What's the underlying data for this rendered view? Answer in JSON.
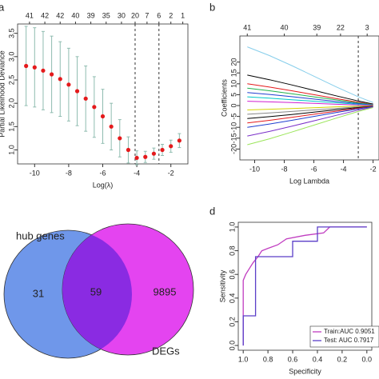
{
  "chart_data": [
    {
      "type": "cvcurve",
      "panel": "a",
      "xlabel": "Log(λ)",
      "ylabel": "Partial Likelihood Deviance",
      "x": [
        -10.5,
        -10,
        -9.5,
        -9,
        -8.5,
        -8,
        -7.5,
        -7,
        -6.5,
        -6,
        -5.5,
        -5,
        -4.5,
        -4,
        -3.5,
        -3,
        -2.5,
        -2,
        -1.5
      ],
      "values": [
        2.8,
        2.77,
        2.7,
        2.62,
        2.52,
        2.4,
        2.26,
        2.1,
        1.92,
        1.72,
        1.5,
        1.25,
        1.0,
        0.83,
        0.85,
        0.92,
        1.0,
        1.08,
        1.2
      ],
      "errors": [
        0.85,
        0.85,
        0.84,
        0.82,
        0.8,
        0.78,
        0.74,
        0.7,
        0.65,
        0.58,
        0.5,
        0.4,
        0.28,
        0.15,
        0.12,
        0.12,
        0.12,
        0.13,
        0.15
      ],
      "color": "#e41a1c",
      "error_color": "#8fbcb0",
      "xlim": [
        -11,
        -1
      ],
      "xticks": [
        -10,
        -8,
        -6,
        -4,
        -2
      ],
      "ylim": [
        0.7,
        3.7
      ],
      "yticks": [
        {
          "value": 1,
          "label": "1.0"
        },
        1.5,
        {
          "value": 2,
          "label": "2.0"
        },
        2.5,
        {
          "value": 3,
          "label": "3.0"
        },
        3.5
      ],
      "top_ticks": [
        {
          "value": -10.3,
          "label": "41"
        },
        {
          "value": -9.4,
          "label": "42"
        },
        {
          "value": -8.5,
          "label": "42"
        },
        {
          "value": -7.6,
          "label": "40"
        },
        {
          "value": -6.7,
          "label": "39"
        },
        {
          "value": -5.8,
          "label": "35"
        },
        {
          "value": -4.9,
          "label": "30"
        },
        {
          "value": -4.1,
          "label": "20"
        },
        {
          "value": -3.4,
          "label": "7"
        },
        {
          "value": -2.7,
          "label": "6"
        },
        {
          "value": -2.0,
          "label": "2"
        },
        {
          "value": -1.3,
          "label": "1"
        }
      ],
      "vlines": [
        -4.1,
        -2.7
      ]
    },
    {
      "type": "coef",
      "panel": "b",
      "xlabel": "Log Lambda",
      "ylabel": "Coefficients",
      "x": [
        -10.5,
        -9,
        -7.5,
        -6,
        -4.5,
        -3,
        -2
      ],
      "series": [
        {
          "color": "#87ceeb",
          "values": [
            27,
            23,
            18.4,
            13.5,
            8.6,
            4,
            1.4
          ]
        },
        {
          "color": "#000000",
          "values": [
            14,
            11.9,
            9.5,
            7,
            4.5,
            2.1,
            0.7
          ]
        },
        {
          "color": "#e41a1c",
          "values": [
            10,
            8.5,
            6.8,
            5,
            3.2,
            1.5,
            0.5
          ]
        },
        {
          "color": "#22b14c",
          "values": [
            8,
            6.8,
            5.4,
            4,
            2.6,
            1.2,
            0.4
          ]
        },
        {
          "color": "#1f3fd0",
          "values": [
            6,
            5.1,
            4.1,
            3,
            1.9,
            0.9,
            0.3
          ]
        },
        {
          "color": "#00c8c8",
          "values": [
            4,
            3.4,
            2.7,
            2,
            1.3,
            0.6,
            0.2
          ]
        },
        {
          "color": "#d020d0",
          "values": [
            2,
            1.7,
            1.4,
            1,
            0.6,
            0.3,
            0.1
          ]
        },
        {
          "color": "#d4d400",
          "values": [
            -2,
            -1.7,
            -1.4,
            -1,
            -0.6,
            -0.3,
            -0.1
          ]
        },
        {
          "color": "#888888",
          "values": [
            -4,
            -3.4,
            -2.7,
            -2,
            -1.3,
            -0.6,
            -0.2
          ]
        },
        {
          "color": "#000000",
          "values": [
            -6,
            -5.1,
            -4.1,
            -3,
            -1.9,
            -0.9,
            -0.3
          ]
        },
        {
          "color": "#e41a1c",
          "values": [
            -8,
            -6.8,
            -5.4,
            -4,
            -2.6,
            -1.2,
            -0.4
          ]
        },
        {
          "color": "#1f3fd0",
          "values": [
            -10,
            -8.5,
            -6.8,
            -5,
            -3.2,
            -1.5,
            -0.5
          ]
        },
        {
          "color": "#7a2fc8",
          "values": [
            -14,
            -11.9,
            -9.5,
            -7,
            -4.5,
            -2.1,
            -0.7
          ]
        },
        {
          "color": "#9be55a",
          "values": [
            -18,
            -15.3,
            -12.2,
            -9,
            -5.8,
            -2.7,
            -0.9
          ]
        }
      ],
      "xlim": [
        -11,
        -1.6
      ],
      "xticks": [
        -10,
        -8,
        -6,
        -4,
        -2
      ],
      "ylim": [
        -25,
        32
      ],
      "yticks": [
        -20,
        -15,
        -10,
        -5,
        0,
        5,
        10,
        15,
        20
      ],
      "top_ticks": [
        {
          "value": -10.5,
          "label": "41"
        },
        {
          "value": -8,
          "label": "40"
        },
        {
          "value": -5.8,
          "label": "39"
        },
        {
          "value": -4.2,
          "label": "22"
        },
        {
          "value": -2.4,
          "label": "3"
        }
      ],
      "vlines": [
        -3
      ]
    },
    {
      "type": "venn",
      "sets": [
        {
          "label": "hub genes",
          "color": "#6f97ea"
        },
        {
          "label": "DEGs",
          "color": "#e444f0"
        }
      ],
      "regions": [
        31,
        59,
        9895
      ],
      "overlap_color": "#8a2be2"
    },
    {
      "type": "roc",
      "panel": "d",
      "xlabel": "Specificity",
      "ylabel": "Sensitivity",
      "series": [
        {
          "name": "Train:AUC 0.9051",
          "color": "#c03cc0",
          "x": [
            1,
            1,
            0.98,
            0.95,
            0.92,
            0.88,
            0.85,
            0.8,
            0.72,
            0.65,
            0.5,
            0.35,
            0.3,
            0
          ],
          "values": [
            0,
            0.55,
            0.6,
            0.65,
            0.7,
            0.75,
            0.8,
            0.82,
            0.85,
            0.9,
            0.93,
            0.95,
            1,
            1
          ]
        },
        {
          "name": "Test: AUC 0.7917",
          "color": "#5b3fc8",
          "x": [
            1,
            1,
            0.9,
            0.9,
            0.6,
            0.6,
            0.4,
            0.4,
            0
          ],
          "values": [
            0,
            0.25,
            0.25,
            0.75,
            0.75,
            0.88,
            0.88,
            1,
            1
          ]
        }
      ],
      "xlim": [
        1.04,
        -0.04
      ],
      "xticks": [
        {
          "value": 1,
          "label": "1.0"
        },
        0.8,
        0.6,
        0.4,
        0.2,
        {
          "value": 0,
          "label": "0.0"
        }
      ],
      "ylim": [
        -0.04,
        1.04
      ],
      "yticks": [
        {
          "value": 0,
          "label": "0.0"
        },
        0.2,
        0.4,
        0.6,
        0.8,
        {
          "value": 1,
          "label": "1.0"
        }
      ],
      "legend": "bottom-right"
    }
  ]
}
